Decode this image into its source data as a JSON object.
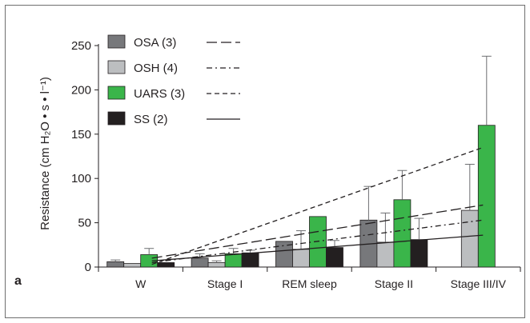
{
  "panel_label": "a",
  "chart_data": {
    "type": "bar",
    "ylabel": "Resistance (cm H₂O • s • l⁻¹)",
    "ylim": [
      0,
      250
    ],
    "yticks": [
      0,
      50,
      100,
      150,
      200,
      250
    ],
    "categories": [
      "W",
      "Stage I",
      "REM sleep",
      "Stage II",
      "Stage III/IV"
    ],
    "legend_position": "top-left",
    "series": [
      {
        "name": "OSA (3)",
        "color": "#77787b",
        "line_style": "long-dash",
        "values": [
          6,
          10,
          29,
          53,
          null
        ],
        "errors": [
          2,
          5,
          0,
          38,
          null
        ]
      },
      {
        "name": "OSH (4)",
        "color": "#bcbec0",
        "line_style": "dash-dot",
        "values": [
          4,
          5,
          20,
          28,
          64
        ],
        "errors": [
          0,
          2,
          21,
          33,
          52
        ]
      },
      {
        "name": "UARS (3)",
        "color": "#3ab54a",
        "line_style": "short-dash",
        "values": [
          14,
          15,
          57,
          76,
          160
        ],
        "errors": [
          7,
          6,
          0,
          33,
          78
        ]
      },
      {
        "name": "SS (2)",
        "color": "#231f20",
        "line_style": "solid",
        "values": [
          5,
          16,
          22,
          31,
          null
        ],
        "errors": [
          0,
          3,
          8,
          24,
          null
        ]
      }
    ],
    "trend_lines": [
      {
        "series": "OSA (3)",
        "start": 10,
        "end": 70
      },
      {
        "series": "OSH (4)",
        "start": 5,
        "end": 53
      },
      {
        "series": "UARS (3)",
        "start": 3,
        "end": 135
      },
      {
        "series": "SS (2)",
        "start": 7,
        "end": 36
      }
    ]
  }
}
